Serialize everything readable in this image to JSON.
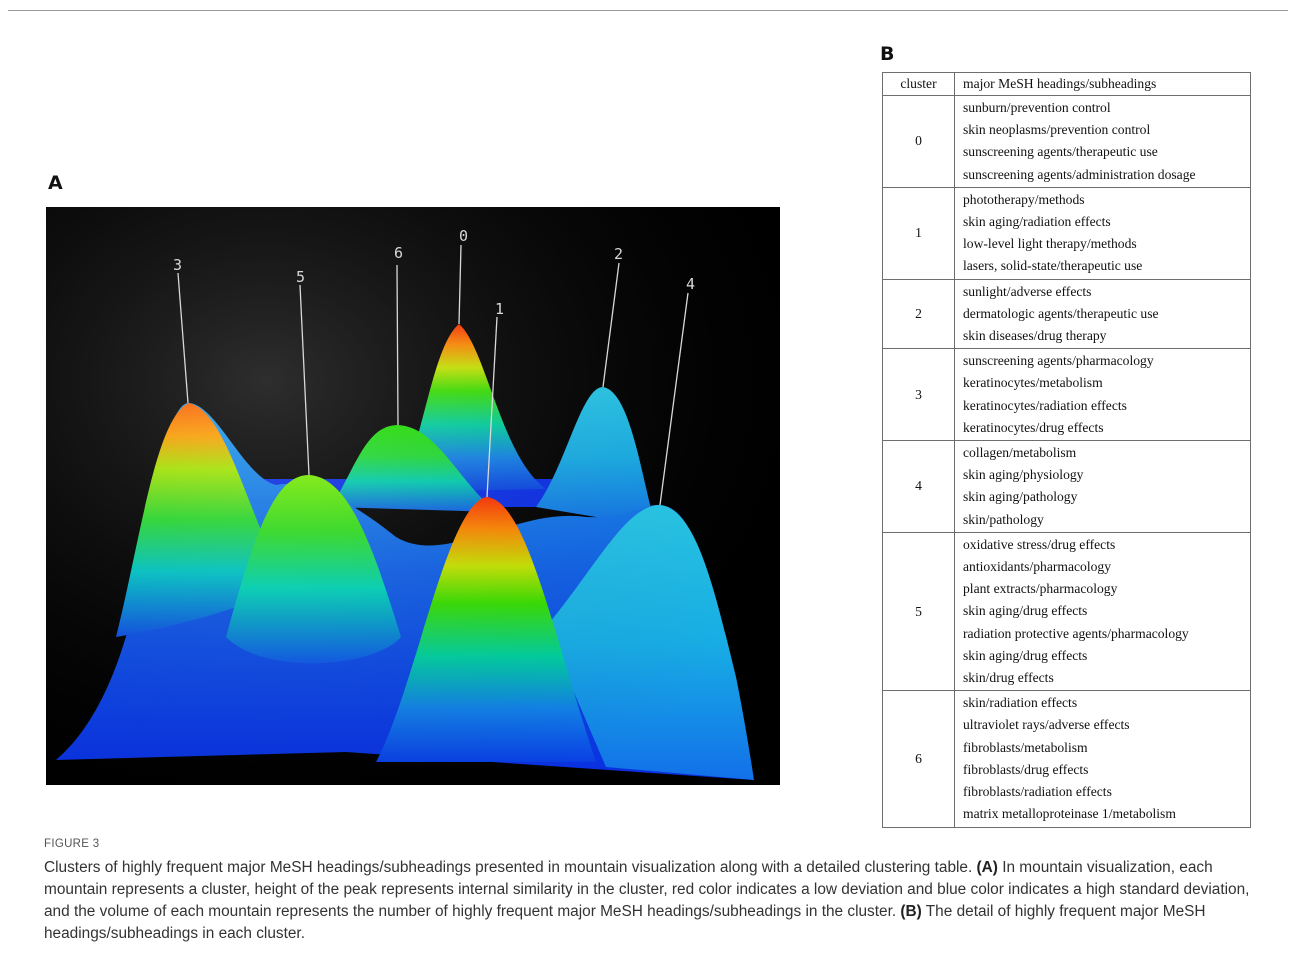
{
  "panel_a_letter": "A",
  "panel_b_letter": "B",
  "mountain_visualization": {
    "background": "#000000",
    "color_high": "#ff2a00",
    "color_low": "#0a20e0",
    "peaks": [
      {
        "label": "0",
        "peak_color": "#ff3300"
      },
      {
        "label": "1",
        "peak_color": "#ff3300"
      },
      {
        "label": "2",
        "peak_color": "#1bbde0"
      },
      {
        "label": "3",
        "peak_color": "#ff6a00"
      },
      {
        "label": "4",
        "peak_color": "#1bb3e6"
      },
      {
        "label": "5",
        "peak_color": "#55ee00"
      },
      {
        "label": "6",
        "peak_color": "#22dd00"
      }
    ]
  },
  "table": {
    "headers": [
      "cluster",
      "major MeSH headings/subheadings"
    ],
    "rows": [
      {
        "cluster": "0",
        "headings": [
          "sunburn/prevention control",
          "skin neoplasms/prevention control",
          "sunscreening agents/therapeutic use",
          "sunscreening agents/administration dosage"
        ]
      },
      {
        "cluster": "1",
        "headings": [
          "phototherapy/methods",
          "skin aging/radiation effects",
          "low-level light therapy/methods",
          "lasers, solid-state/therapeutic use"
        ]
      },
      {
        "cluster": "2",
        "headings": [
          "sunlight/adverse effects",
          "dermatologic agents/therapeutic use",
          "skin diseases/drug therapy"
        ]
      },
      {
        "cluster": "3",
        "headings": [
          "sunscreening agents/pharmacology",
          "keratinocytes/metabolism",
          "keratinocytes/radiation effects",
          "keratinocytes/drug effects"
        ]
      },
      {
        "cluster": "4",
        "headings": [
          "collagen/metabolism",
          "skin aging/physiology",
          "skin aging/pathology",
          "skin/pathology"
        ]
      },
      {
        "cluster": "5",
        "headings": [
          "oxidative stress/drug effects",
          "antioxidants/pharmacology",
          "plant extracts/pharmacology",
          "skin aging/drug effects",
          "radiation protective agents/pharmacology",
          "skin aging/drug effects",
          "skin/drug effects"
        ]
      },
      {
        "cluster": "6",
        "headings": [
          "skin/radiation effects",
          "ultraviolet rays/adverse effects",
          "fibroblasts/metabolism",
          "fibroblasts/drug effects",
          "fibroblasts/radiation effects",
          "matrix metalloproteinase 1/metabolism"
        ]
      }
    ]
  },
  "figure_label": "FIGURE 3",
  "caption": {
    "intro": "Clusters of highly frequent major MeSH headings/subheadings presented in mountain visualization along with a detailed clustering table. ",
    "a_label": "(A)",
    "a_text": " In mountain visualization, each mountain represents a cluster, height of the peak represents internal similarity in the cluster, red color indicates a low deviation and blue color indicates a high standard deviation, and the volume of each mountain represents the number of highly frequent major MeSH headings/subheadings in the cluster. ",
    "b_label": "(B)",
    "b_text": " The detail of highly frequent major MeSH headings/subheadings in each cluster."
  }
}
